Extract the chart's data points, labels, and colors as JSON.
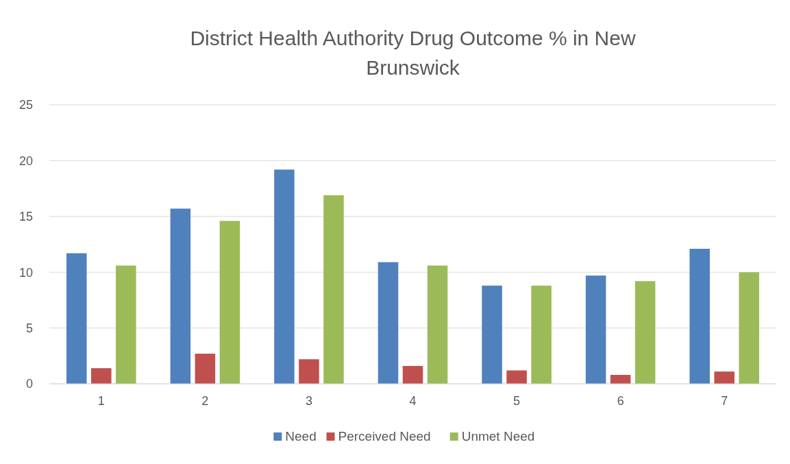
{
  "chart_data": {
    "type": "bar",
    "title": "District Health Authority Drug Outcome % in New Brunswick",
    "categories": [
      "1",
      "2",
      "3",
      "4",
      "5",
      "6",
      "7"
    ],
    "series": [
      {
        "name": "Need",
        "color": "#4f81bd",
        "values": [
          11.7,
          15.7,
          19.2,
          10.9,
          8.8,
          9.7,
          12.1
        ]
      },
      {
        "name": "Perceived Need",
        "color": "#c0504d",
        "values": [
          1.4,
          2.7,
          2.2,
          1.6,
          1.2,
          0.8,
          1.1
        ]
      },
      {
        "name": "Unmet Need",
        "color": "#9bbb59",
        "values": [
          10.6,
          14.6,
          16.9,
          10.6,
          8.8,
          9.2,
          10.0
        ]
      }
    ],
    "ylim": [
      0,
      25
    ],
    "yticks": [
      0,
      5,
      10,
      15,
      20,
      25
    ],
    "grid": "y",
    "legend": "bottom"
  }
}
